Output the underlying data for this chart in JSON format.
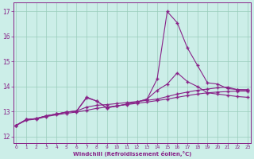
{
  "x": [
    0,
    1,
    2,
    3,
    4,
    5,
    6,
    7,
    8,
    9,
    10,
    11,
    12,
    13,
    14,
    15,
    16,
    17,
    18,
    19,
    20,
    21,
    22,
    23
  ],
  "line1_spike": [
    12.45,
    12.68,
    12.72,
    12.83,
    12.9,
    12.98,
    13.02,
    13.58,
    13.42,
    13.15,
    13.22,
    13.3,
    13.38,
    13.5,
    14.3,
    17.0,
    16.55,
    15.55,
    14.85,
    14.15,
    14.1,
    13.92,
    13.88,
    13.87
  ],
  "line2_hi": [
    12.45,
    12.68,
    12.72,
    12.83,
    12.9,
    12.98,
    13.02,
    13.55,
    13.42,
    13.15,
    13.22,
    13.3,
    13.38,
    13.5,
    13.85,
    14.1,
    14.55,
    14.2,
    14.0,
    13.75,
    13.7,
    13.65,
    13.6,
    13.57
  ],
  "line3_mid": [
    12.45,
    12.68,
    12.72,
    12.83,
    12.9,
    12.98,
    13.02,
    13.18,
    13.25,
    13.28,
    13.32,
    13.36,
    13.4,
    13.45,
    13.5,
    13.6,
    13.7,
    13.78,
    13.85,
    13.9,
    13.95,
    13.98,
    13.87,
    13.87
  ],
  "line4_low": [
    12.45,
    12.65,
    12.7,
    12.8,
    12.87,
    12.93,
    12.98,
    13.05,
    13.13,
    13.18,
    13.23,
    13.28,
    13.33,
    13.38,
    13.44,
    13.5,
    13.57,
    13.64,
    13.7,
    13.75,
    13.78,
    13.8,
    13.82,
    13.82
  ],
  "bg_color": "#cceee8",
  "grid_color": "#99ccbb",
  "line_color": "#882288",
  "xlabel": "Windchill (Refroidissement éolien,°C)",
  "ylabel_ticks": [
    12,
    13,
    14,
    15,
    16,
    17
  ],
  "xlabel_ticks": [
    0,
    1,
    2,
    3,
    4,
    5,
    6,
    7,
    8,
    9,
    10,
    11,
    12,
    13,
    14,
    15,
    16,
    17,
    18,
    19,
    20,
    21,
    22,
    23
  ],
  "ylim": [
    11.75,
    17.35
  ],
  "xlim": [
    -0.3,
    23.3
  ]
}
